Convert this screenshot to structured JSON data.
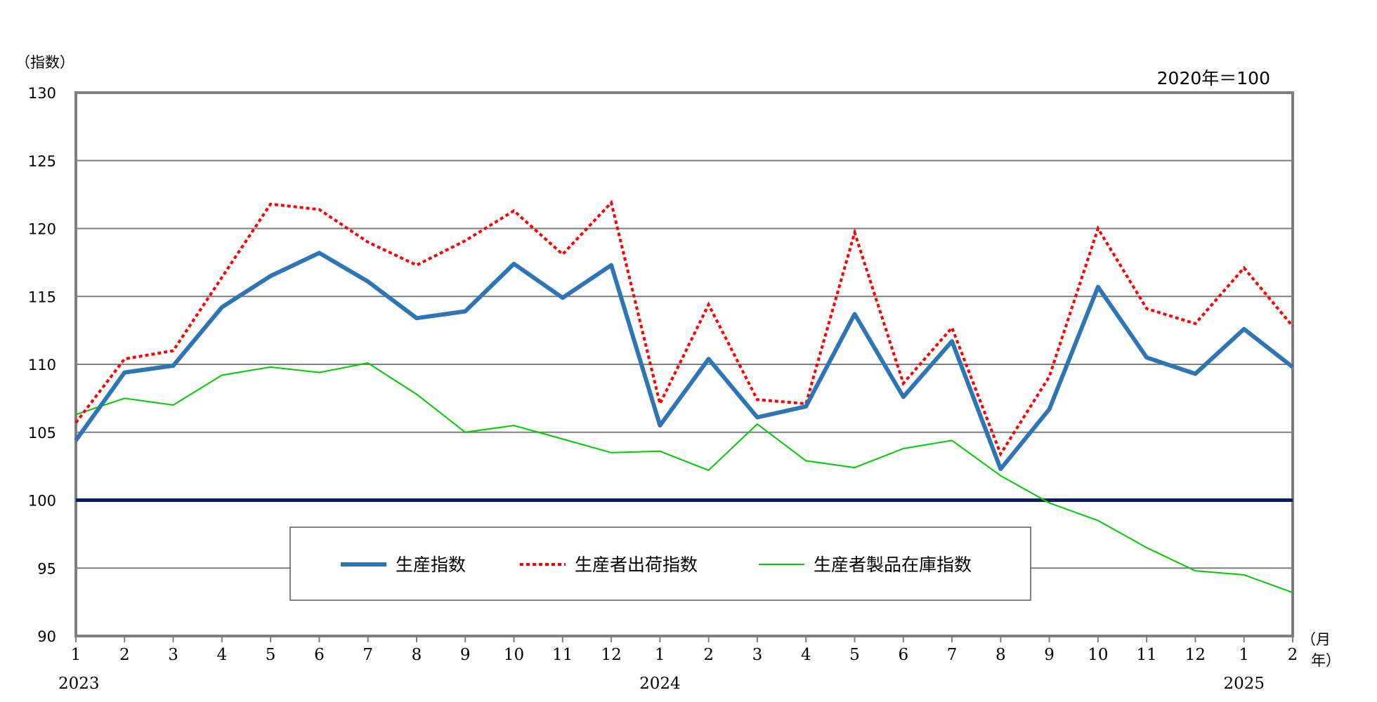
{
  "chart_data": {
    "type": "line",
    "y_unit_label": "（指数）",
    "base_note": "2020年＝100",
    "x_unit_label_month": "（月",
    "x_unit_label_year": "年）",
    "ylim": [
      90,
      130
    ],
    "y_ticks": [
      90,
      95,
      100,
      105,
      110,
      115,
      120,
      125,
      130
    ],
    "reference_line": 100,
    "grid": true,
    "legend_position": "bottom-center inside plot",
    "categories": [
      "1",
      "2",
      "3",
      "4",
      "5",
      "6",
      "7",
      "8",
      "9",
      "10",
      "11",
      "12",
      "1",
      "2",
      "3",
      "4",
      "5",
      "6",
      "7",
      "8",
      "9",
      "10",
      "11",
      "12",
      "1",
      "2"
    ],
    "years": [
      {
        "label": "2023",
        "index": 0
      },
      {
        "label": "2024",
        "index": 12
      },
      {
        "label": "2025",
        "index": 24
      }
    ],
    "series": [
      {
        "name": "生産指数",
        "color": "#2e75b6",
        "style": "solid-thick",
        "values": [
          104.4,
          109.4,
          109.9,
          114.2,
          116.5,
          118.2,
          116.1,
          113.4,
          113.9,
          117.4,
          114.9,
          117.3,
          105.5,
          110.4,
          106.1,
          106.9,
          113.7,
          107.6,
          111.7,
          102.3,
          106.7,
          115.7,
          110.5,
          109.3,
          112.6,
          109.8
        ]
      },
      {
        "name": "生産者出荷指数",
        "color": "#ff0000",
        "style": "dotted",
        "values": [
          105.7,
          110.4,
          111.0,
          116.4,
          121.8,
          121.4,
          119.0,
          117.3,
          119.1,
          121.3,
          118.1,
          121.9,
          107.1,
          114.4,
          107.4,
          107.1,
          119.7,
          108.6,
          112.7,
          103.4,
          109.1,
          120.0,
          114.1,
          113.0,
          117.1,
          112.8
        ]
      },
      {
        "name": "生産者製品在庫指数",
        "color": "#00cc00",
        "style": "solid-thin",
        "values": [
          106.3,
          107.5,
          107.0,
          109.2,
          109.8,
          109.4,
          110.1,
          107.8,
          105.0,
          105.5,
          104.5,
          103.5,
          103.6,
          102.2,
          105.6,
          102.9,
          102.4,
          103.8,
          104.4,
          101.8,
          99.8,
          98.5,
          96.5,
          94.8,
          94.5,
          93.2
        ]
      }
    ]
  }
}
